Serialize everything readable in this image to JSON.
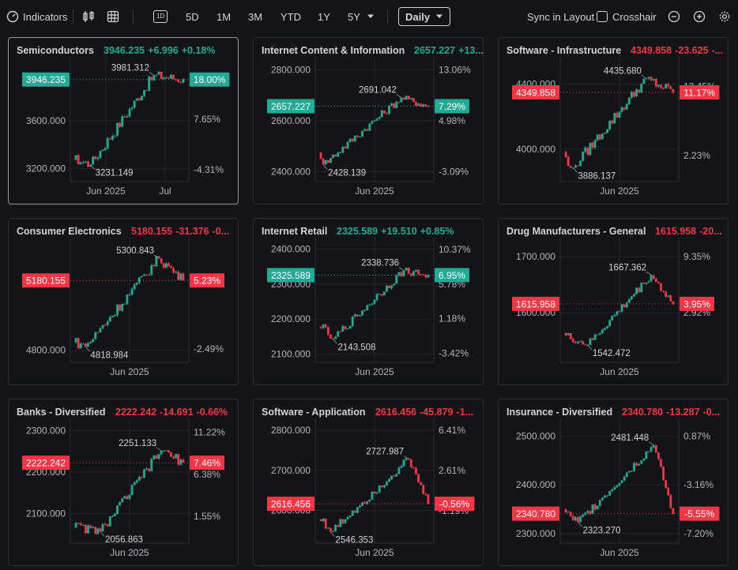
{
  "toolbar": {
    "indicators_label": "Indicators",
    "interval_badge": "1D",
    "ranges": [
      "5D",
      "1M",
      "3M",
      "YTD",
      "1Y",
      "5Y"
    ],
    "timeframe": "Daily",
    "sync_label": "Sync in Layout",
    "crosshair_label": "Crosshair"
  },
  "colors": {
    "up": "#22ab94",
    "down": "#f23645",
    "background": "#131417"
  },
  "panels": [
    {
      "title": "Semiconductors",
      "price": "3946.235",
      "change": "+6.996",
      "pct": "+0.18%",
      "dir": "up",
      "active": true,
      "price_levels": [
        "3600.000",
        "3200.000"
      ],
      "price_level_values": [
        3600,
        3200
      ],
      "pct_levels": [
        "7.65%",
        "-4.31%"
      ],
      "pct_level_values": [
        7.65,
        -4.31
      ],
      "pct_badge": "18.00%",
      "high_label": "3981.312",
      "low_label": "3231.149",
      "x_labels": [
        "Jun 2025",
        "Jul"
      ],
      "x_label_pos": [
        0.3,
        0.8
      ],
      "ymin": 3130,
      "ymax": 4070,
      "pmin": -6.0,
      "pmax": 20.5
    },
    {
      "title": "Internet Content & Information",
      "price": "2657.227",
      "change": "+13...",
      "pct": "",
      "dir": "up",
      "active": false,
      "price_levels": [
        "2800.000",
        "2600.000",
        "2400.000"
      ],
      "price_level_values": [
        2800,
        2600,
        2400
      ],
      "pct_levels": [
        "13.06%",
        "4.98%",
        "-3.09%"
      ],
      "pct_level_values": [
        13.06,
        4.98,
        -3.09
      ],
      "pct_badge": "7.29%",
      "high_label": "2691.042",
      "low_label": "2428.139",
      "x_labels": [
        "Jun 2025"
      ],
      "x_label_pos": [
        0.5
      ],
      "ymin": 2380,
      "ymax": 2820,
      "pmin": -3.9,
      "pmax": 13.9
    },
    {
      "title": "Software - Infrastructure",
      "price": "4349.858",
      "change": "-23.625",
      "pct": "-...",
      "dir": "down",
      "active": false,
      "price_levels": [
        "4400.000",
        "4000.000"
      ],
      "price_level_values": [
        4400,
        4000
      ],
      "pct_levels": [
        "13.45%",
        "2.23%"
      ],
      "pct_level_values": [
        13.45,
        2.23
      ],
      "pct_badge": "11.17%",
      "high_label": "4435.680",
      "low_label": "3886.137",
      "x_labels": [
        "Jun 2025"
      ],
      "x_label_pos": [
        0.5
      ],
      "ymin": 3830,
      "ymax": 4520,
      "pmin": -1.2,
      "pmax": 17.0
    },
    {
      "title": "Consumer Electronics",
      "price": "5180.155",
      "change": "-31.376",
      "pct": "-0...",
      "dir": "down",
      "active": false,
      "price_levels": [
        "4800.000"
      ],
      "price_level_values": [
        4800
      ],
      "pct_levels": [
        "-2.49%"
      ],
      "pct_level_values": [
        -2.49
      ],
      "pct_badge": "5.23%",
      "high_label": "5300.843",
      "low_label": "4818.984",
      "x_labels": [
        "Jun 2025"
      ],
      "x_label_pos": [
        0.5
      ],
      "ymin": 4760,
      "ymax": 5370,
      "pmin": -3.4,
      "pmax": 8.5
    },
    {
      "title": "Internet Retail",
      "price": "2325.589",
      "change": "+19.510",
      "pct": "+0.85%",
      "dir": "up",
      "active": false,
      "price_levels": [
        "2400.000",
        "2300.000",
        "2200.000",
        "2100.000"
      ],
      "price_level_values": [
        2400,
        2300,
        2200,
        2100
      ],
      "pct_levels": [
        "10.37%",
        "5.78%",
        "1.18%",
        "-3.42%"
      ],
      "pct_level_values": [
        10.37,
        5.78,
        1.18,
        -3.42
      ],
      "pct_badge": "6.95%",
      "high_label": "2338.736",
      "low_label": "2143.508",
      "x_labels": [
        "Jun 2025"
      ],
      "x_label_pos": [
        0.5
      ],
      "ymin": 2090,
      "ymax": 2410,
      "pmin": -4.0,
      "pmax": 10.9
    },
    {
      "title": "Drug Manufacturers - General",
      "price": "1615.958",
      "change": "-20...",
      "pct": "",
      "dir": "down",
      "active": false,
      "price_levels": [
        "1700.000",
        "1600.000"
      ],
      "price_level_values": [
        1700,
        1600
      ],
      "pct_levels": [
        "9.35%",
        "2.92%"
      ],
      "pct_level_values": [
        9.35,
        2.92
      ],
      "pct_badge": "3.95%",
      "high_label": "1667.362",
      "low_label": "1542.472",
      "x_labels": [
        "Jun 2025"
      ],
      "x_label_pos": [
        0.5
      ],
      "ymin": 1520,
      "ymax": 1720,
      "pmin": -2.2,
      "pmax": 10.6
    },
    {
      "title": "Banks - Diversified",
      "price": "2222.242",
      "change": "-14.691",
      "pct": "-0.66%",
      "dir": "down",
      "active": false,
      "price_levels": [
        "2300.000",
        "2200.000",
        "2100.000"
      ],
      "price_level_values": [
        2300,
        2200,
        2100
      ],
      "pct_levels": [
        "11.22%",
        "6.38%",
        "1.55%"
      ],
      "pct_level_values": [
        11.22,
        6.38,
        1.55
      ],
      "pct_badge": "7.46%",
      "high_label": "2251.133",
      "low_label": "2056.863",
      "x_labels": [
        "Jun 2025"
      ],
      "x_label_pos": [
        0.5
      ],
      "ymin": 2040,
      "ymax": 2310,
      "pmin": -1.0,
      "pmax": 11.9
    },
    {
      "title": "Software - Application",
      "price": "2616.456",
      "change": "-45.879",
      "pct": "-1...",
      "dir": "down",
      "active": false,
      "price_levels": [
        "2800.000",
        "2700.000",
        "2600.000"
      ],
      "price_level_values": [
        2800,
        2700,
        2600
      ],
      "pct_levels": [
        "6.41%",
        "2.61%",
        "-1.19%"
      ],
      "pct_level_values": [
        6.41,
        2.61,
        -1.19
      ],
      "pct_badge": "-0.56%",
      "high_label": "2727.987",
      "low_label": "2546.353",
      "x_labels": [
        "Jun 2025"
      ],
      "x_label_pos": [
        0.5
      ],
      "ymin": 2530,
      "ymax": 2810,
      "pmin": -3.8,
      "pmax": 6.8
    },
    {
      "title": "Insurance - Diversified",
      "price": "2340.780",
      "change": "-13.287",
      "pct": "-0...",
      "dir": "down",
      "active": false,
      "price_levels": [
        "2500.000",
        "2400.000",
        "2300.000"
      ],
      "price_level_values": [
        2500,
        2400,
        2300
      ],
      "pct_levels": [
        "0.87%",
        "-3.16%",
        "-7.20%"
      ],
      "pct_level_values": [
        0.87,
        -3.16,
        -7.2
      ],
      "pct_badge": "-5.55%",
      "high_label": "2481.448",
      "low_label": "2323.270",
      "x_labels": [
        "Jun 2025"
      ],
      "x_label_pos": [
        0.5
      ],
      "ymin": 2290,
      "ymax": 2520,
      "pmin": -7.6,
      "pmax": 1.7
    }
  ]
}
